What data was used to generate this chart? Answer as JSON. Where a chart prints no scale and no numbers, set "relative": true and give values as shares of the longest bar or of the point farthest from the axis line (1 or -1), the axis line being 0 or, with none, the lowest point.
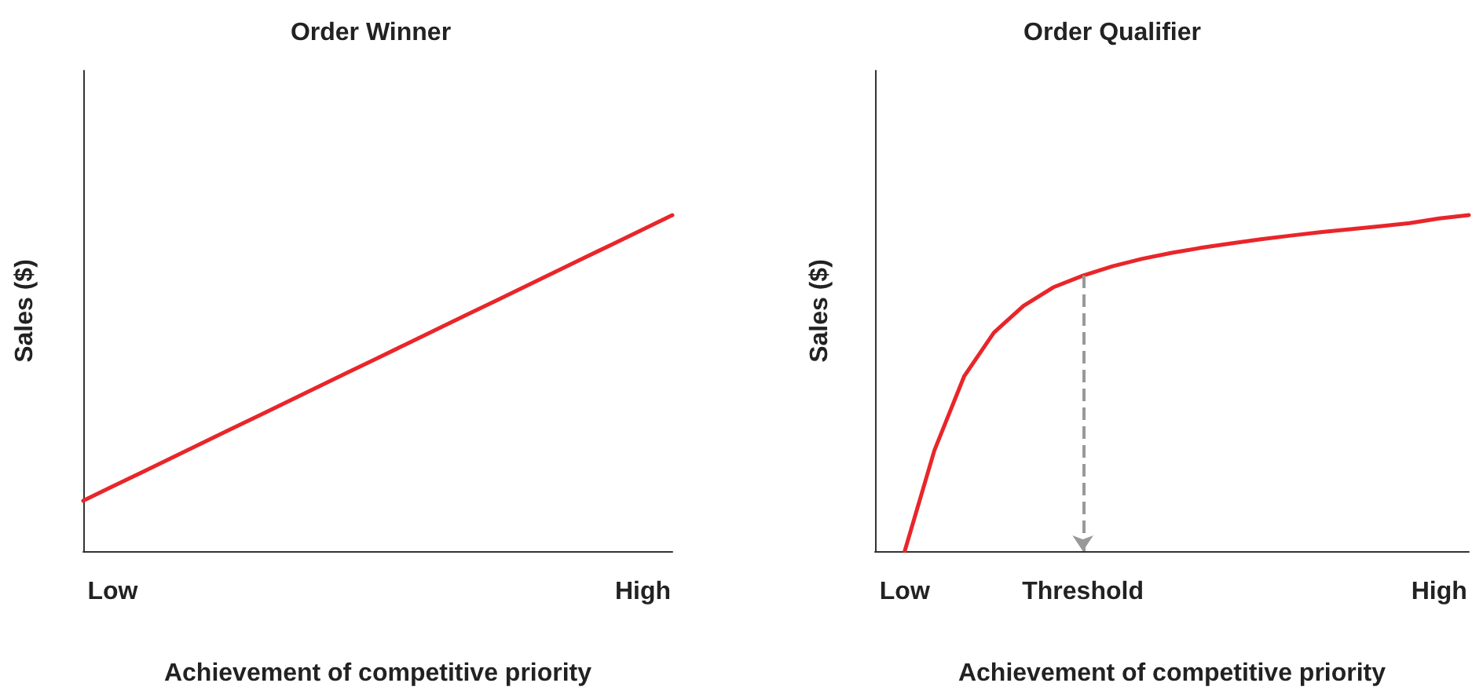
{
  "chart_data": [
    {
      "type": "line",
      "title": "Order Winner",
      "xlabel": "Achievement of competitive priority",
      "ylabel": "Sales ($)",
      "relative": true,
      "categories": [
        null,
        "Low",
        null,
        null,
        null,
        null,
        null,
        null,
        null,
        null,
        null,
        null,
        null,
        null,
        null,
        null,
        null,
        null,
        null,
        "High",
        null
      ],
      "series": [
        {
          "color": "#e8262a",
          "values": [
            0.15,
            0.1925,
            0.235,
            0.2775,
            0.32,
            0.3625,
            0.405,
            0.4475,
            0.49,
            0.5325,
            0.575,
            0.6175,
            0.66,
            0.7025,
            0.745,
            0.7875,
            0.83,
            0.8725,
            0.915,
            0.9575,
            1
          ]
        }
      ],
      "grid": false,
      "marker": "none",
      "line_style": "solid"
    },
    {
      "type": "line",
      "title": "Order Qualifier",
      "xlabel": "Achievement of competitive priority",
      "ylabel": "Sales ($)",
      "relative": true,
      "categories": [
        null,
        "Low",
        null,
        null,
        null,
        null,
        null,
        "Threshold",
        null,
        null,
        null,
        null,
        null,
        null,
        null,
        null,
        null,
        null,
        null,
        "High",
        null
      ],
      "series": [
        {
          "color": "#e8262a",
          "values": [
            null,
            0,
            0.3,
            0.52,
            0.65,
            0.73,
            0.785,
            0.82,
            0.848,
            0.87,
            0.888,
            0.903,
            0.916,
            0.928,
            0.939,
            0.949,
            0.958,
            0.967,
            0.976,
            0.99,
            1
          ]
        }
      ],
      "ref_lines": [
        {
          "axis": "x",
          "value": "Threshold",
          "color": "#999999",
          "line_style": "dashed"
        }
      ],
      "grid": false,
      "marker": "none",
      "line_style": "solid"
    }
  ]
}
